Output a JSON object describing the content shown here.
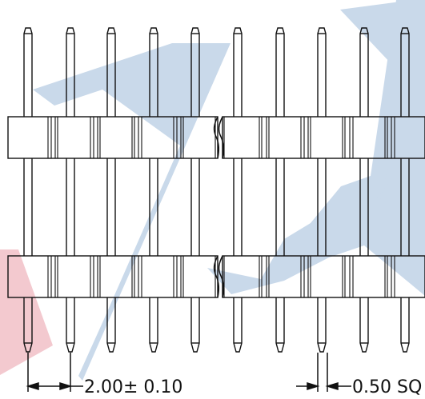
{
  "drawing": {
    "title": "",
    "pin_count_visible": 10,
    "pitch_dimension": "2.00± 0.10",
    "pin_size_dimension": "0.50",
    "pin_size_suffix": "SQ",
    "break_symbol": "wavy-break-line",
    "colors": {
      "line": "#111111",
      "watermark_blue": "#c9d9ea",
      "watermark_red": "#f3c9cf",
      "background": "#ffffff"
    }
  }
}
